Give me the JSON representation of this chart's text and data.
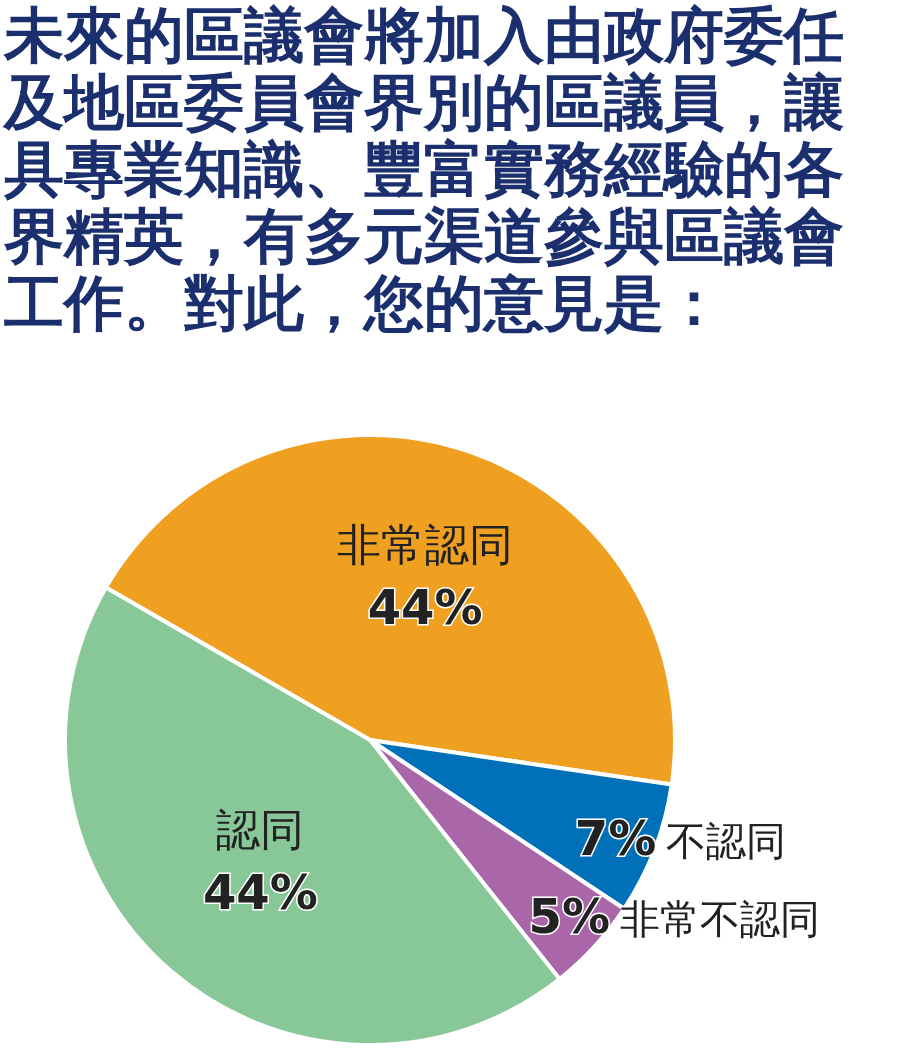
{
  "chart_data": {
    "type": "pie",
    "title": "未來的區議會將加入由政府委任及地區委員會界別的區議員，讓具專業知識、豐富實務經驗的各界精英，有多元渠道參與區議會工作。對此，您的意見是：",
    "categories": [
      "非常認同",
      "不認同",
      "非常不認同",
      "認同"
    ],
    "values": [
      44,
      7,
      5,
      44
    ],
    "value_labels": [
      "44%",
      "7%",
      "5%",
      "44%"
    ],
    "colors": [
      "#f0a020",
      "#0071b9",
      "#a966a8",
      "#88c797"
    ]
  }
}
